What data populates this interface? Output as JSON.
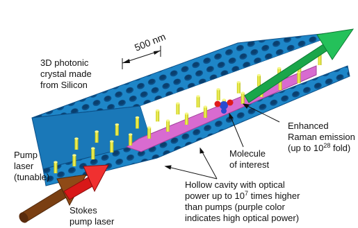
{
  "figure": {
    "scale_bar": "500 nm",
    "labels": {
      "crystal": "3D photonic\ncrystal made\nfrom Silicon",
      "pump_laser": "Pump\nlaser\n(tunable)",
      "stokes_laser": "Stokes\npump laser",
      "raman_line1": "Enhanced",
      "raman_line2": "Raman emission",
      "raman_line3_pre": "(up to 10",
      "raman_line3_exp": "28",
      "raman_line3_post": " fold)",
      "molecule": "Molecule\nof interest",
      "cavity_line1": "Hollow cavity with optical",
      "cavity_line2_pre": "power up to 10",
      "cavity_line2_exp": "7",
      "cavity_line2_post": " times higher",
      "cavity_line3": "than pumps (purple color",
      "cavity_line4": "indicates high optical power)"
    },
    "colors": {
      "silicon": "#1e86c8",
      "silicon_dark": "#0f5d99",
      "pillar": "#e0e62a",
      "cavity": "#d86bd0",
      "pump_arrow": "#7a3f12",
      "stokes_arrow": "#e01b1b",
      "raman_arrow": "#1aa64a",
      "molecule_blue": "#2a4bd0",
      "molecule_red": "#e01b1b"
    }
  }
}
